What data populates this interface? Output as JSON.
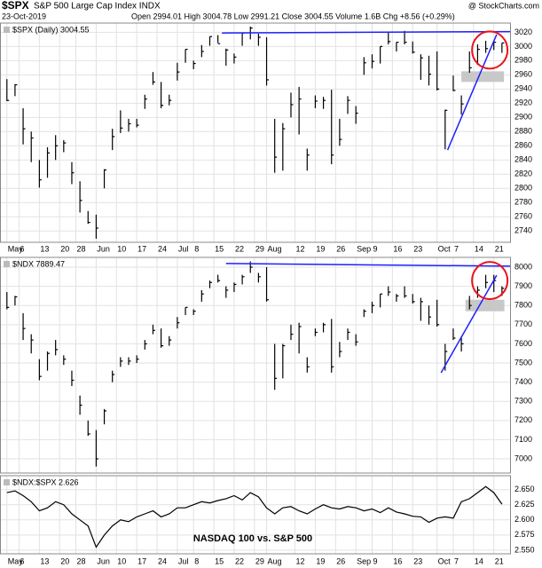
{
  "header": {
    "symbol": "$SPX",
    "name": "S&P 500 Large Cap Index INDX",
    "source": "@ StockCharts.com",
    "date": "23-Oct-2019",
    "quote": "Open 2994.01 High 3004.78 Low 2991.21 Close 3004.55 Volume 1.6B Chg +8.56 (+0.29%)"
  },
  "chart_data": [
    {
      "type": "ohlc",
      "legend": "$SPX (Daily) 3004.55",
      "color": "#000000",
      "x": [
        0,
        2,
        4,
        6,
        8,
        10,
        12,
        14,
        16,
        18,
        20,
        22,
        24,
        26,
        28,
        30,
        32,
        34,
        36,
        38,
        40,
        42,
        44,
        46,
        48,
        50,
        52,
        54,
        56,
        58,
        60,
        62,
        64,
        66,
        68,
        70,
        72,
        74,
        76,
        78,
        80,
        82,
        84,
        86,
        88,
        90,
        92,
        94,
        96,
        98,
        100,
        102,
        104,
        106,
        108,
        110,
        112,
        114,
        116,
        118,
        120,
        122
      ],
      "high": [
        2954,
        2947,
        2913,
        2880,
        2840,
        2858,
        2875,
        2868,
        2837,
        2810,
        2768,
        2763,
        2827,
        2884,
        2910,
        2898,
        2898,
        2932,
        2964,
        2950,
        2932,
        2977,
        2996,
        2980,
        3002,
        3014,
        3016,
        2997,
        2990,
        3019,
        3028,
        3018,
        3013,
        2898,
        2892,
        2935,
        2943,
        2856,
        2931,
        2929,
        2939,
        2898,
        2930,
        2916,
        2985,
        2989,
        3000,
        3021,
        3006,
        3022,
        3007,
        2989,
        2987,
        2993,
        2911,
        2959,
        2931,
        2993,
        3003,
        3008,
        3007,
        3005
      ],
      "low": [
        2923,
        2930,
        2862,
        2837,
        2801,
        2815,
        2840,
        2851,
        2806,
        2766,
        2750,
        2729,
        2800,
        2854,
        2878,
        2880,
        2886,
        2912,
        2946,
        2913,
        2917,
        2952,
        2977,
        2968,
        2985,
        3001,
        3005,
        2973,
        2976,
        3001,
        3010,
        3001,
        2945,
        2822,
        2825,
        2900,
        2876,
        2825,
        2913,
        2912,
        2834,
        2860,
        2905,
        2891,
        2960,
        2969,
        2976,
        3003,
        2993,
        3003,
        2990,
        2953,
        2945,
        2938,
        2855,
        2937,
        2904,
        2963,
        2974,
        2991,
        2995,
        2991
      ],
      "close": [
        2924,
        2946,
        2884,
        2871,
        2812,
        2850,
        2860,
        2864,
        2822,
        2783,
        2752,
        2744,
        2826,
        2873,
        2885,
        2891,
        2889,
        2926,
        2950,
        2917,
        2924,
        2964,
        2996,
        2976,
        2993,
        3014,
        3004,
        2995,
        2985,
        3019,
        3026,
        3013,
        2953,
        2844,
        2884,
        2918,
        2926,
        2847,
        2923,
        2924,
        2847,
        2869,
        2924,
        2906,
        2977,
        2979,
        3000,
        3007,
        3006,
        3006,
        2992,
        2984,
        2961,
        2940,
        2910,
        2938,
        2919,
        2970,
        2996,
        2997,
        3006,
        3005
      ],
      "xlim": [
        -1.7,
        124
      ],
      "xticks": [
        {
          "value": 0,
          "label": "May"
        },
        {
          "value": 3,
          "label": "6"
        },
        {
          "value": 8,
          "label": "13"
        },
        {
          "value": 13,
          "label": "20"
        },
        {
          "value": 17,
          "label": "28"
        },
        {
          "value": 22,
          "label": "Jun"
        },
        {
          "value": 27,
          "label": "10"
        },
        {
          "value": 32,
          "label": "17"
        },
        {
          "value": 37,
          "label": "24"
        },
        {
          "value": 42,
          "label": "Jul"
        },
        {
          "value": 46,
          "label": "8"
        },
        {
          "value": 51,
          "label": "15"
        },
        {
          "value": 56,
          "label": "22"
        },
        {
          "value": 61,
          "label": "29"
        },
        {
          "value": 64,
          "label": "Aug"
        },
        {
          "value": 71,
          "label": "12"
        },
        {
          "value": 76,
          "label": "19"
        },
        {
          "value": 81,
          "label": "26"
        },
        {
          "value": 86,
          "label": "Sep"
        },
        {
          "value": 90,
          "label": "9"
        },
        {
          "value": 95,
          "label": "16"
        },
        {
          "value": 100,
          "label": "23"
        },
        {
          "value": 106,
          "label": "Oct"
        },
        {
          "value": 110,
          "label": "7"
        },
        {
          "value": 115,
          "label": "14"
        },
        {
          "value": 120,
          "label": "21"
        }
      ],
      "ylim": [
        2724,
        3033
      ],
      "yticks": [
        2740,
        2760,
        2780,
        2800,
        2820,
        2840,
        2860,
        2880,
        2900,
        2920,
        2940,
        2960,
        2980,
        3000,
        3020
      ],
      "grid": true,
      "trend_lines": [
        {
          "x": [
            53,
            124
          ],
          "y": [
            3019,
            3021
          ],
          "color": "#1f1fff"
        },
        {
          "x": [
            108.6,
            120.7
          ],
          "y": [
            2854,
            3017
          ],
          "color": "#1f1fff"
        }
      ],
      "highlight_box": {
        "x": [
          112,
          122.5
        ],
        "y": [
          2950,
          2965
        ],
        "color": "#c8c8c8"
      },
      "circle": {
        "x": 119,
        "y": 2995,
        "color": "#e8141c"
      }
    },
    {
      "type": "ohlc",
      "legend": "$NDX 7889.47",
      "color": "#000000",
      "x": [
        0,
        2,
        4,
        6,
        8,
        10,
        12,
        14,
        16,
        18,
        20,
        22,
        24,
        26,
        28,
        30,
        32,
        34,
        36,
        38,
        40,
        42,
        44,
        46,
        48,
        50,
        52,
        54,
        56,
        58,
        60,
        62,
        64,
        66,
        68,
        70,
        72,
        74,
        76,
        78,
        80,
        82,
        84,
        86,
        88,
        90,
        92,
        94,
        96,
        98,
        100,
        102,
        104,
        106,
        108,
        110,
        112,
        114,
        116,
        118,
        120,
        122
      ],
      "high": [
        7870,
        7850,
        7760,
        7650,
        7520,
        7560,
        7620,
        7540,
        7460,
        7330,
        7200,
        7150,
        7260,
        7460,
        7530,
        7530,
        7540,
        7620,
        7700,
        7680,
        7640,
        7740,
        7790,
        7780,
        7880,
        7930,
        7960,
        7900,
        7920,
        7960,
        8030,
        7970,
        8000,
        7600,
        7600,
        7700,
        7710,
        7530,
        7680,
        7710,
        7730,
        7610,
        7680,
        7650,
        7780,
        7820,
        7860,
        7900,
        7860,
        7900,
        7860,
        7840,
        7800,
        7830,
        7600,
        7680,
        7640,
        7850,
        7900,
        7960,
        7960,
        7900
      ],
      "low": [
        7780,
        7800,
        7620,
        7550,
        7410,
        7460,
        7540,
        7490,
        7380,
        7230,
        7120,
        6960,
        7180,
        7400,
        7480,
        7490,
        7500,
        7570,
        7650,
        7580,
        7590,
        7680,
        7750,
        7750,
        7820,
        7890,
        7920,
        7840,
        7870,
        7910,
        7970,
        7920,
        7820,
        7360,
        7420,
        7620,
        7550,
        7450,
        7640,
        7660,
        7450,
        7530,
        7620,
        7590,
        7740,
        7760,
        7790,
        7850,
        7820,
        7840,
        7810,
        7720,
        7700,
        7690,
        7460,
        7620,
        7560,
        7780,
        7840,
        7890,
        7870,
        7850
      ],
      "close": [
        7790,
        7845,
        7680,
        7620,
        7430,
        7550,
        7570,
        7520,
        7410,
        7280,
        7130,
        7000,
        7250,
        7440,
        7510,
        7510,
        7520,
        7600,
        7670,
        7590,
        7620,
        7710,
        7790,
        7770,
        7860,
        7920,
        7930,
        7880,
        7910,
        7950,
        8000,
        7950,
        7830,
        7420,
        7590,
        7650,
        7690,
        7480,
        7660,
        7700,
        7480,
        7560,
        7660,
        7610,
        7770,
        7800,
        7860,
        7870,
        7850,
        7850,
        7820,
        7820,
        7740,
        7700,
        7560,
        7630,
        7600,
        7800,
        7880,
        7920,
        7930,
        7889.47
      ],
      "xlim": [
        -1.7,
        124
      ],
      "ylim": [
        6926,
        8051
      ],
      "yticks": [
        7000,
        7100,
        7200,
        7300,
        7400,
        7500,
        7600,
        7700,
        7800,
        7900,
        8000
      ],
      "grid": true,
      "trend_lines": [
        {
          "x": [
            54,
            124
          ],
          "y": [
            8019,
            8005
          ],
          "color": "#1f1fff"
        },
        {
          "x": [
            107,
            120.7
          ],
          "y": [
            7449,
            7958
          ],
          "color": "#1f1fff"
        }
      ],
      "highlight_box": {
        "x": [
          113,
          122.6
        ],
        "y": [
          7770,
          7830
        ],
        "color": "#c8c8c8"
      },
      "circle": {
        "x": 119,
        "y": 7930,
        "color": "#e8141c"
      }
    },
    {
      "type": "line",
      "legend": "$NDX:$SPX 2.626",
      "color": "#000000",
      "annotation": "NASDAQ 100 vs. S&P 500",
      "x": [
        0,
        2,
        4,
        6,
        8,
        10,
        12,
        14,
        16,
        18,
        20,
        22,
        24,
        26,
        28,
        30,
        32,
        34,
        36,
        38,
        40,
        42,
        44,
        46,
        48,
        50,
        52,
        54,
        56,
        58,
        60,
        62,
        64,
        66,
        68,
        70,
        72,
        74,
        76,
        78,
        80,
        82,
        84,
        86,
        88,
        90,
        92,
        94,
        96,
        98,
        100,
        102,
        104,
        106,
        108,
        110,
        112,
        114,
        116,
        118,
        120,
        122
      ],
      "values": [
        2.645,
        2.648,
        2.64,
        2.63,
        2.615,
        2.62,
        2.63,
        2.625,
        2.61,
        2.6,
        2.59,
        2.555,
        2.575,
        2.59,
        2.6,
        2.597,
        2.605,
        2.61,
        2.615,
        2.605,
        2.61,
        2.62,
        2.62,
        2.625,
        2.63,
        2.628,
        2.632,
        2.635,
        2.64,
        2.633,
        2.645,
        2.638,
        2.62,
        2.61,
        2.62,
        2.622,
        2.615,
        2.61,
        2.618,
        2.625,
        2.62,
        2.618,
        2.622,
        2.62,
        2.615,
        2.618,
        2.612,
        2.62,
        2.613,
        2.61,
        2.606,
        2.605,
        2.596,
        2.603,
        2.605,
        2.603,
        2.63,
        2.635,
        2.645,
        2.655,
        2.645,
        2.626
      ],
      "xlim": [
        -1.7,
        124
      ],
      "xticks": [
        {
          "value": 0,
          "label": "May"
        },
        {
          "value": 3,
          "label": "6"
        },
        {
          "value": 8,
          "label": "13"
        },
        {
          "value": 13,
          "label": "20"
        },
        {
          "value": 17,
          "label": "28"
        },
        {
          "value": 22,
          "label": "Jun"
        },
        {
          "value": 27,
          "label": "10"
        },
        {
          "value": 32,
          "label": "17"
        },
        {
          "value": 37,
          "label": "24"
        },
        {
          "value": 42,
          "label": "Jul"
        },
        {
          "value": 46,
          "label": "8"
        },
        {
          "value": 51,
          "label": "15"
        },
        {
          "value": 56,
          "label": "22"
        },
        {
          "value": 61,
          "label": "29"
        },
        {
          "value": 64,
          "label": "Aug"
        },
        {
          "value": 71,
          "label": "12"
        },
        {
          "value": 76,
          "label": "19"
        },
        {
          "value": 81,
          "label": "26"
        },
        {
          "value": 86,
          "label": "Sep"
        },
        {
          "value": 90,
          "label": "9"
        },
        {
          "value": 95,
          "label": "16"
        },
        {
          "value": 100,
          "label": "23"
        },
        {
          "value": 106,
          "label": "Oct"
        },
        {
          "value": 110,
          "label": "7"
        },
        {
          "value": 115,
          "label": "14"
        },
        {
          "value": 120,
          "label": "21"
        }
      ],
      "ylim": [
        2.544,
        2.673
      ],
      "yticks": [
        {
          "value": 2.55,
          "label": "2.550"
        },
        {
          "value": 2.575,
          "label": "2.575"
        },
        {
          "value": 2.6,
          "label": "2.600"
        },
        {
          "value": 2.625,
          "label": "2.625"
        },
        {
          "value": 2.65,
          "label": "2.650"
        }
      ],
      "grid": true
    }
  ]
}
